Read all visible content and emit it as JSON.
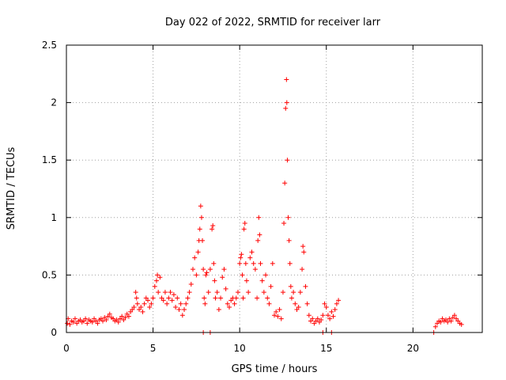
{
  "chart_data": {
    "type": "scatter",
    "title": "Day 022 of 2022, SRMTID for receiver larr",
    "xlabel": "GPS time / hours",
    "ylabel": "SRMTID / TECUs",
    "xlim": [
      0,
      24
    ],
    "ylim": [
      0,
      2.5
    ],
    "xticks": [
      0,
      5,
      10,
      15,
      20
    ],
    "xtick_labels": [
      "0",
      "5",
      "10",
      "15",
      "20"
    ],
    "yticks": [
      0,
      0.5,
      1,
      1.5,
      2,
      2.5
    ],
    "ytick_labels": [
      "0",
      "0.5",
      "1",
      "1.5",
      "2",
      "2.5"
    ],
    "grid": true,
    "marker": "+",
    "series": [
      {
        "name": "SRMTID",
        "color": "#ff0000",
        "points": [
          [
            0.05,
            0.08
          ],
          [
            0.1,
            0.12
          ],
          [
            0.2,
            0.07
          ],
          [
            0.3,
            0.1
          ],
          [
            0.4,
            0.09
          ],
          [
            0.5,
            0.12
          ],
          [
            0.6,
            0.08
          ],
          [
            0.7,
            0.1
          ],
          [
            0.8,
            0.11
          ],
          [
            0.9,
            0.09
          ],
          [
            1.0,
            0.1
          ],
          [
            1.1,
            0.12
          ],
          [
            1.2,
            0.08
          ],
          [
            1.3,
            0.11
          ],
          [
            1.4,
            0.1
          ],
          [
            1.5,
            0.09
          ],
          [
            1.6,
            0.12
          ],
          [
            1.7,
            0.1
          ],
          [
            1.8,
            0.08
          ],
          [
            1.9,
            0.11
          ],
          [
            2.0,
            0.12
          ],
          [
            2.1,
            0.1
          ],
          [
            2.2,
            0.13
          ],
          [
            2.3,
            0.11
          ],
          [
            2.4,
            0.14
          ],
          [
            2.5,
            0.16
          ],
          [
            2.6,
            0.13
          ],
          [
            2.7,
            0.12
          ],
          [
            2.8,
            0.1
          ],
          [
            2.9,
            0.11
          ],
          [
            3.0,
            0.09
          ],
          [
            3.1,
            0.12
          ],
          [
            3.2,
            0.14
          ],
          [
            3.3,
            0.11
          ],
          [
            3.4,
            0.13
          ],
          [
            3.5,
            0.16
          ],
          [
            3.6,
            0.14
          ],
          [
            3.7,
            0.18
          ],
          [
            3.8,
            0.2
          ],
          [
            3.9,
            0.22
          ],
          [
            4.0,
            0.35
          ],
          [
            4.05,
            0.3
          ],
          [
            4.1,
            0.25
          ],
          [
            4.2,
            0.2
          ],
          [
            4.3,
            0.22
          ],
          [
            4.4,
            0.18
          ],
          [
            4.5,
            0.25
          ],
          [
            4.6,
            0.3
          ],
          [
            4.7,
            0.28
          ],
          [
            4.8,
            0.22
          ],
          [
            4.9,
            0.25
          ],
          [
            5.0,
            0.3
          ],
          [
            5.1,
            0.4
          ],
          [
            5.2,
            0.45
          ],
          [
            5.25,
            0.5
          ],
          [
            5.3,
            0.35
          ],
          [
            5.4,
            0.48
          ],
          [
            5.5,
            0.3
          ],
          [
            5.6,
            0.28
          ],
          [
            5.7,
            0.35
          ],
          [
            5.8,
            0.25
          ],
          [
            5.9,
            0.3
          ],
          [
            6.0,
            0.35
          ],
          [
            6.1,
            0.28
          ],
          [
            6.2,
            0.33
          ],
          [
            6.3,
            0.22
          ],
          [
            6.4,
            0.3
          ],
          [
            6.5,
            0.2
          ],
          [
            6.6,
            0.25
          ],
          [
            6.7,
            0.15
          ],
          [
            6.8,
            0.2
          ],
          [
            6.9,
            0.25
          ],
          [
            7.0,
            0.3
          ],
          [
            7.1,
            0.35
          ],
          [
            7.2,
            0.42
          ],
          [
            7.3,
            0.55
          ],
          [
            7.4,
            0.65
          ],
          [
            7.5,
            0.5
          ],
          [
            7.6,
            0.7
          ],
          [
            7.65,
            0.8
          ],
          [
            7.7,
            0.9
          ],
          [
            7.75,
            1.1
          ],
          [
            7.8,
            1.0
          ],
          [
            7.85,
            0.8
          ],
          [
            7.9,
            0.55
          ],
          [
            7.95,
            0.3
          ],
          [
            8.0,
            0.25
          ],
          [
            8.05,
            0.5
          ],
          [
            8.1,
            0.52
          ],
          [
            8.2,
            0.35
          ],
          [
            8.3,
            0.55
          ],
          [
            8.4,
            0.9
          ],
          [
            8.45,
            0.93
          ],
          [
            8.5,
            0.6
          ],
          [
            8.55,
            0.45
          ],
          [
            8.6,
            0.3
          ],
          [
            8.7,
            0.35
          ],
          [
            8.8,
            0.2
          ],
          [
            8.9,
            0.3
          ],
          [
            9.0,
            0.48
          ],
          [
            9.1,
            0.55
          ],
          [
            9.2,
            0.38
          ],
          [
            9.3,
            0.25
          ],
          [
            9.4,
            0.22
          ],
          [
            9.5,
            0.28
          ],
          [
            9.6,
            0.3
          ],
          [
            9.7,
            0.25
          ],
          [
            9.8,
            0.3
          ],
          [
            9.9,
            0.35
          ],
          [
            10.0,
            0.6
          ],
          [
            10.05,
            0.65
          ],
          [
            10.1,
            0.68
          ],
          [
            10.15,
            0.5
          ],
          [
            10.2,
            0.3
          ],
          [
            10.25,
            0.9
          ],
          [
            10.3,
            0.95
          ],
          [
            10.35,
            0.6
          ],
          [
            10.4,
            0.45
          ],
          [
            10.5,
            0.35
          ],
          [
            10.6,
            0.65
          ],
          [
            10.7,
            0.7
          ],
          [
            10.8,
            0.6
          ],
          [
            10.9,
            0.55
          ],
          [
            11.0,
            0.3
          ],
          [
            11.05,
            0.8
          ],
          [
            11.1,
            1.0
          ],
          [
            11.15,
            0.85
          ],
          [
            11.2,
            0.6
          ],
          [
            11.3,
            0.45
          ],
          [
            11.4,
            0.35
          ],
          [
            11.5,
            0.5
          ],
          [
            11.6,
            0.3
          ],
          [
            11.7,
            0.25
          ],
          [
            11.8,
            0.4
          ],
          [
            11.9,
            0.6
          ],
          [
            12.0,
            0.15
          ],
          [
            12.1,
            0.18
          ],
          [
            12.2,
            0.14
          ],
          [
            12.3,
            0.2
          ],
          [
            12.4,
            0.12
          ],
          [
            12.5,
            0.35
          ],
          [
            12.55,
            0.95
          ],
          [
            12.6,
            1.3
          ],
          [
            12.65,
            1.95
          ],
          [
            12.7,
            2.2
          ],
          [
            12.72,
            2.0
          ],
          [
            12.75,
            1.5
          ],
          [
            12.8,
            1.0
          ],
          [
            12.85,
            0.8
          ],
          [
            12.9,
            0.6
          ],
          [
            12.95,
            0.4
          ],
          [
            13.0,
            0.3
          ],
          [
            13.1,
            0.35
          ],
          [
            13.2,
            0.25
          ],
          [
            13.3,
            0.2
          ],
          [
            13.4,
            0.22
          ],
          [
            13.5,
            0.35
          ],
          [
            13.6,
            0.55
          ],
          [
            13.65,
            0.75
          ],
          [
            13.7,
            0.7
          ],
          [
            13.8,
            0.4
          ],
          [
            13.9,
            0.25
          ],
          [
            14.0,
            0.15
          ],
          [
            14.1,
            0.1
          ],
          [
            14.2,
            0.12
          ],
          [
            14.3,
            0.08
          ],
          [
            14.4,
            0.1
          ],
          [
            14.5,
            0.12
          ],
          [
            14.6,
            0.09
          ],
          [
            14.7,
            0.11
          ],
          [
            14.8,
            0.15
          ],
          [
            14.9,
            0.25
          ],
          [
            15.0,
            0.22
          ],
          [
            15.1,
            0.15
          ],
          [
            15.2,
            0.12
          ],
          [
            15.3,
            0.18
          ],
          [
            15.4,
            0.14
          ],
          [
            15.5,
            0.2
          ],
          [
            15.6,
            0.25
          ],
          [
            15.7,
            0.28
          ],
          [
            7.9,
            0.0
          ],
          [
            8.3,
            0.0
          ],
          [
            14.8,
            0.0
          ],
          [
            15.3,
            0.0
          ],
          [
            21.2,
            0.0
          ],
          [
            21.3,
            0.05
          ],
          [
            21.4,
            0.08
          ],
          [
            21.5,
            0.1
          ],
          [
            21.6,
            0.09
          ],
          [
            21.7,
            0.12
          ],
          [
            21.8,
            0.1
          ],
          [
            21.9,
            0.11
          ],
          [
            22.0,
            0.09
          ],
          [
            22.1,
            0.12
          ],
          [
            22.2,
            0.1
          ],
          [
            22.3,
            0.13
          ],
          [
            22.4,
            0.15
          ],
          [
            22.5,
            0.12
          ],
          [
            22.6,
            0.1
          ],
          [
            22.7,
            0.08
          ],
          [
            22.8,
            0.07
          ]
        ]
      }
    ]
  }
}
